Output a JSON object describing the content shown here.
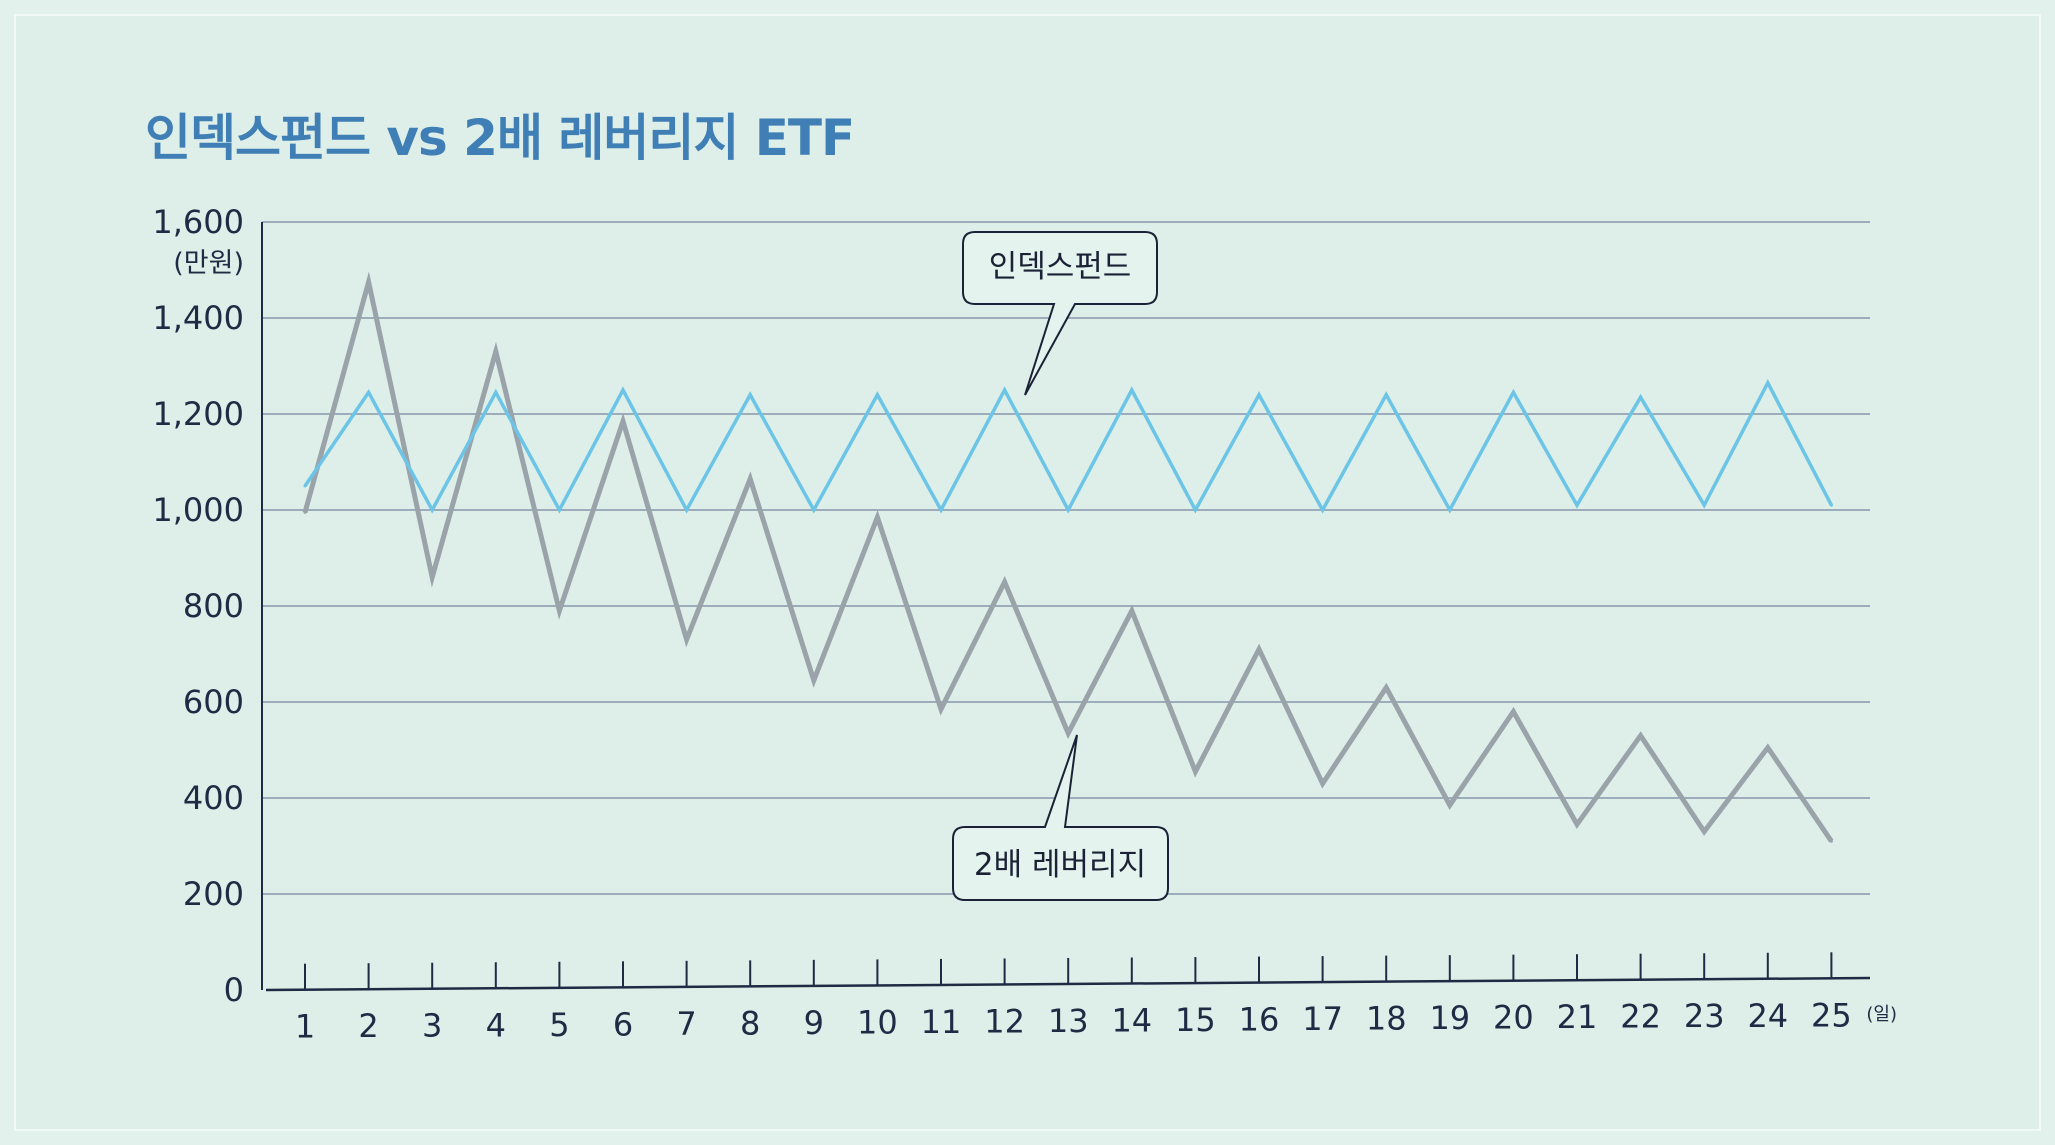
{
  "title": "인덱스펀드 vs 2배 레버리지 ETF",
  "chart_data": {
    "type": "line",
    "title": "인덱스펀드 vs 2배 레버리지 ETF",
    "ylabel": "(만원)",
    "xlabel": "(일)",
    "ylim": [
      0,
      1600
    ],
    "yticks": [
      0,
      200,
      400,
      600,
      800,
      1000,
      1200,
      1400,
      1600
    ],
    "ytick_labels": [
      "0",
      "200",
      "400",
      "600",
      "800",
      "1,000",
      "1,200",
      "1,400",
      "1,600"
    ],
    "x": [
      1,
      2,
      3,
      4,
      5,
      6,
      7,
      8,
      9,
      10,
      11,
      12,
      13,
      14,
      15,
      16,
      17,
      18,
      19,
      20,
      21,
      22,
      23,
      24,
      25
    ],
    "grid": true,
    "legend": "callouts",
    "series": [
      {
        "name": "인덱스펀드",
        "color": "#6cc4e6",
        "values": [
          1050,
          1245,
          1000,
          1245,
          1000,
          1250,
          1000,
          1240,
          1000,
          1240,
          1000,
          1250,
          1000,
          1250,
          1000,
          1240,
          1000,
          1240,
          1000,
          1245,
          1010,
          1235,
          1010,
          1265,
          1010
        ]
      },
      {
        "name": "2배 레버리지",
        "color": "#9aa2aa",
        "values": [
          995,
          1475,
          860,
          1330,
          790,
          1185,
          730,
          1065,
          645,
          985,
          585,
          850,
          535,
          790,
          455,
          710,
          430,
          630,
          385,
          580,
          345,
          530,
          330,
          505,
          310
        ]
      }
    ]
  },
  "colors": {
    "index_line": "#6cc4e6",
    "leverage_line": "#9aa2aa",
    "grid": "#6b7896",
    "axis": "#1f2a44",
    "title": "#3f7fb6"
  }
}
